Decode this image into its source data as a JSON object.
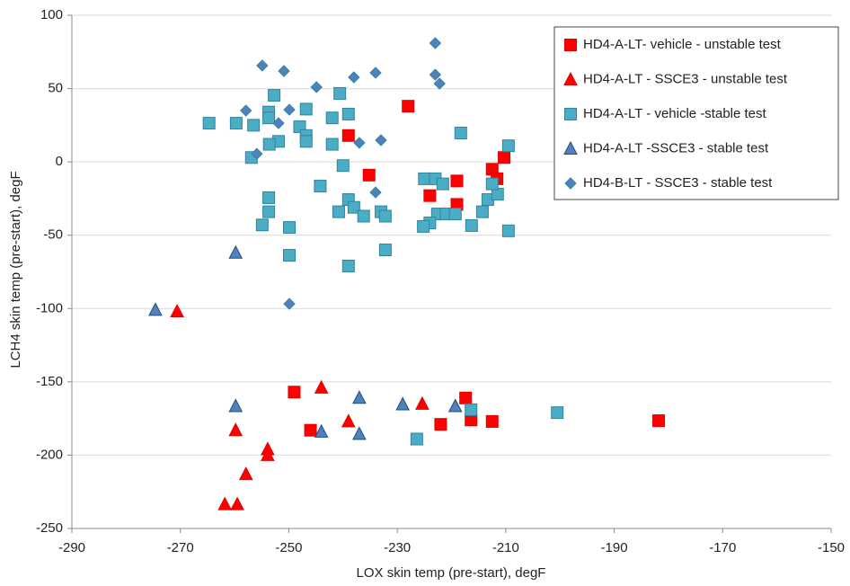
{
  "chart_data": {
    "type": "scatter",
    "x_label": "LOX  skin temp (pre-start), degF",
    "y_label": "LCH4  skin temp (pre-start), degF",
    "xlim": [
      -290,
      -150
    ],
    "xticks": [
      -290,
      -270,
      -250,
      -230,
      -210,
      -190,
      -170,
      -150
    ],
    "ylim": [
      -250,
      100
    ],
    "yticks": [
      -250,
      -200,
      -150,
      -100,
      -50,
      0,
      50,
      100
    ],
    "grid": true,
    "legend": "top-right",
    "series": [
      {
        "name": "HD4-A-LT- vehicle - unstable test",
        "color": "#ff0000",
        "marker": "square",
        "x": [
          -228,
          -239,
          -235.2,
          -224,
          -219,
          -219,
          -212.5,
          -210.3,
          -211.6,
          -249,
          -246,
          -222,
          -217.4,
          -216.4,
          -212.5,
          -181.8
        ],
        "values": [
          38,
          18,
          -9,
          -23,
          -13,
          -29,
          -5,
          3,
          -11.5,
          -157,
          -183,
          -179,
          -161,
          -176,
          -177,
          -176.5
        ]
      },
      {
        "name": "HD4-A-LT - SSCE3 - unstable test",
        "color": "#ff0000",
        "marker": "triangle",
        "x": [
          -270.6,
          -244,
          -225.4,
          -239,
          -259.8,
          -253.9,
          -253.9,
          -257.9,
          -261.8,
          -259.5
        ],
        "values": [
          -102,
          -154,
          -165,
          -177,
          -183,
          -196,
          -200,
          -213,
          -233.5,
          -233.5
        ]
      },
      {
        "name": "HD4-A-LT - vehicle -stable test",
        "color": "#4bacc6",
        "marker": "square",
        "x": [
          -264.7,
          -259.7,
          -256.5,
          -253.7,
          -253.7,
          -252.7,
          -246.8,
          -248,
          -246.8,
          -246.8,
          -251.9,
          -253.6,
          -256.9,
          -240.6,
          -242,
          -239,
          -242,
          -240,
          -244.2,
          -240.8,
          -239,
          -238,
          -236.2,
          -233,
          -232.2,
          -232.2,
          -239,
          -253.7,
          -253.7,
          -254.9,
          -249.9,
          -249.9,
          -218.3,
          -209.5,
          -225,
          -223,
          -221.6,
          -222.6,
          -221,
          -219.3,
          -224,
          -225.2,
          -216.3,
          -214.3,
          -213.3,
          -211.5,
          -212.5,
          -209.5,
          -226.4,
          -216.4,
          -200.5
        ],
        "values": [
          26.4,
          26.4,
          25,
          34,
          30,
          45.4,
          36,
          24,
          18,
          14,
          14,
          12,
          3,
          46.7,
          30,
          32.6,
          12,
          -2.5,
          -16.5,
          -34,
          -25.7,
          -31,
          -37,
          -34,
          -37,
          -60,
          -71,
          -24.4,
          -34,
          -43,
          -44.7,
          -63.7,
          19.7,
          11,
          -11.5,
          -11.5,
          -15,
          -35.5,
          -35.5,
          -35.5,
          -41.6,
          -44,
          -43.4,
          -34,
          -25.7,
          -22,
          -15,
          -47,
          -189,
          -169,
          -171
        ]
      },
      {
        "name": "HD4-A-LT -SSCE3 - stable test",
        "color": "#4f81bd",
        "marker": "triangle",
        "x": [
          -274.6,
          -259.8,
          -259.8,
          -244,
          -237,
          -237,
          -229,
          -219.3
        ],
        "values": [
          -101,
          -62,
          -166.6,
          -184,
          -161,
          -185.6,
          -165.4,
          -166.6
        ]
      },
      {
        "name": "HD4-B-LT - SSCE3 - stable test",
        "color": "#4f81bd",
        "marker": "diamond",
        "x": [
          -223,
          -223,
          -222.2,
          -254.9,
          -250.9,
          -244.9,
          -238,
          -234,
          -257.9,
          -249.9,
          -251.9,
          -255.9,
          -237,
          -233,
          -234,
          -249.9
        ],
        "values": [
          81,
          59.5,
          53.4,
          65.7,
          62,
          51,
          57.7,
          60.8,
          35,
          35.6,
          26.4,
          5.5,
          13,
          14.8,
          -20.8,
          -96.8
        ]
      }
    ]
  }
}
